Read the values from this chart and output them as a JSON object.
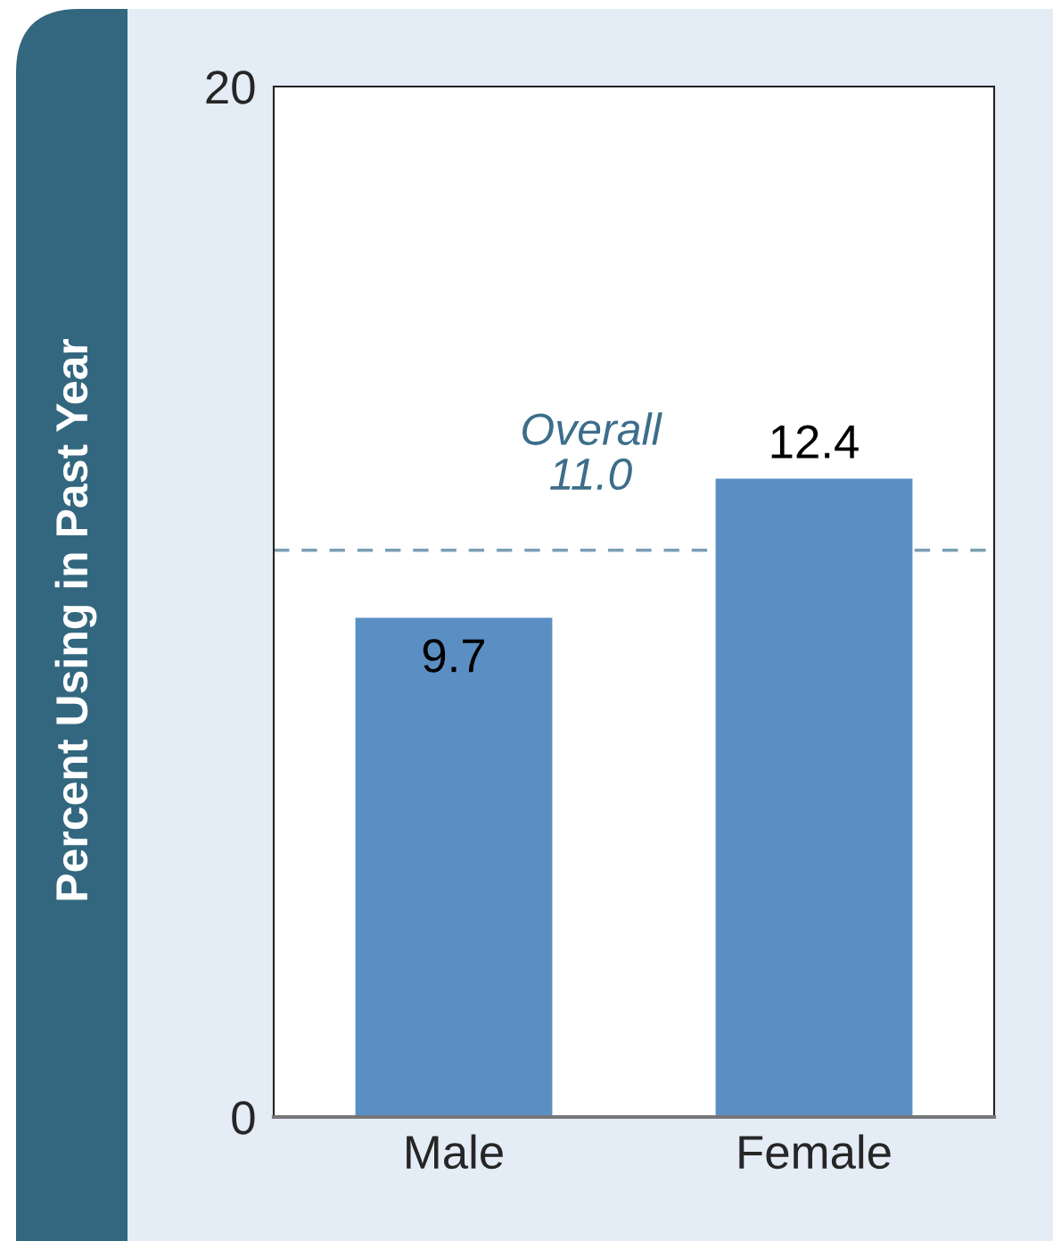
{
  "chart_data": {
    "type": "bar",
    "ylabel": "Percent Using in Past Year",
    "categories": [
      "Male",
      "Female"
    ],
    "values": [
      9.7,
      12.4
    ],
    "color": "#5b8fc4",
    "ylim": [
      0,
      20
    ],
    "yticks": [
      0,
      20
    ],
    "grid": false,
    "data_labels": true,
    "ref_lines": [
      {
        "axis": "y",
        "value": 11.0,
        "label": "Overall\n11.0",
        "color": "#7a9fb5",
        "line_style": "dashed"
      }
    ]
  }
}
